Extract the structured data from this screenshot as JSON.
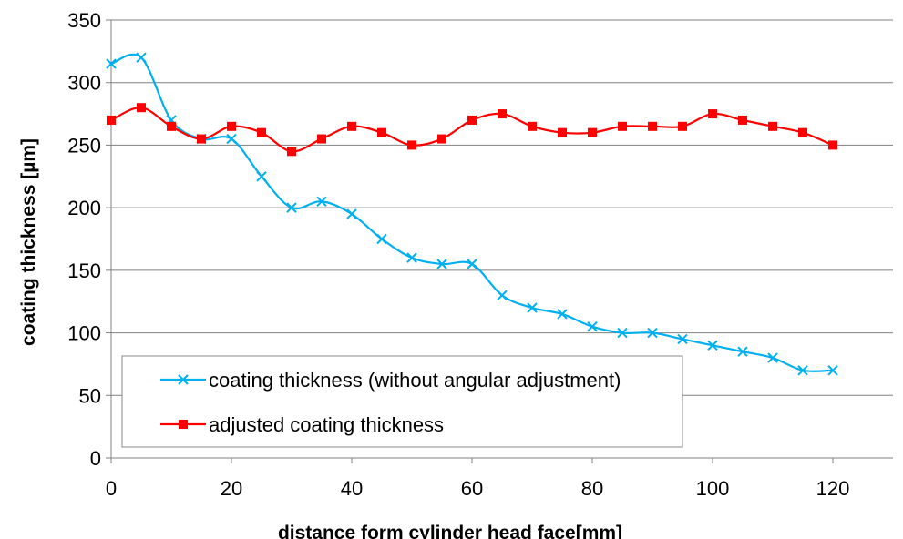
{
  "chart_data": {
    "type": "line",
    "title": "",
    "xlabel": "distance form cylinder head face[mm]",
    "ylabel": "coating thickness [µm]",
    "xlim": [
      0,
      130
    ],
    "ylim": [
      0,
      350
    ],
    "x_ticks": [
      "0",
      "20",
      "40",
      "60",
      "80",
      "100",
      "120"
    ],
    "y_ticks": [
      "0",
      "50",
      "100",
      "150",
      "200",
      "250",
      "300",
      "350"
    ],
    "grid": "horizontal",
    "legend_position": "lower-left",
    "x": [
      0,
      5,
      10,
      15,
      20,
      25,
      30,
      35,
      40,
      45,
      50,
      55,
      60,
      65,
      70,
      75,
      80,
      85,
      90,
      95,
      100,
      105,
      110,
      115,
      120
    ],
    "series": [
      {
        "name": "coating thickness (without angular adjustment)",
        "color": "#00b0f0",
        "marker": "x",
        "values": [
          315,
          320,
          270,
          255,
          255,
          225,
          200,
          205,
          195,
          175,
          160,
          155,
          155,
          130,
          120,
          115,
          105,
          100,
          100,
          95,
          90,
          85,
          80,
          70,
          70
        ]
      },
      {
        "name": "adjusted coating thickness",
        "color": "#ff0000",
        "marker": "square",
        "values": [
          270,
          280,
          265,
          255,
          265,
          260,
          245,
          255,
          265,
          260,
          250,
          255,
          270,
          275,
          265,
          260,
          260,
          265,
          265,
          265,
          275,
          270,
          265,
          260,
          250
        ]
      }
    ]
  }
}
